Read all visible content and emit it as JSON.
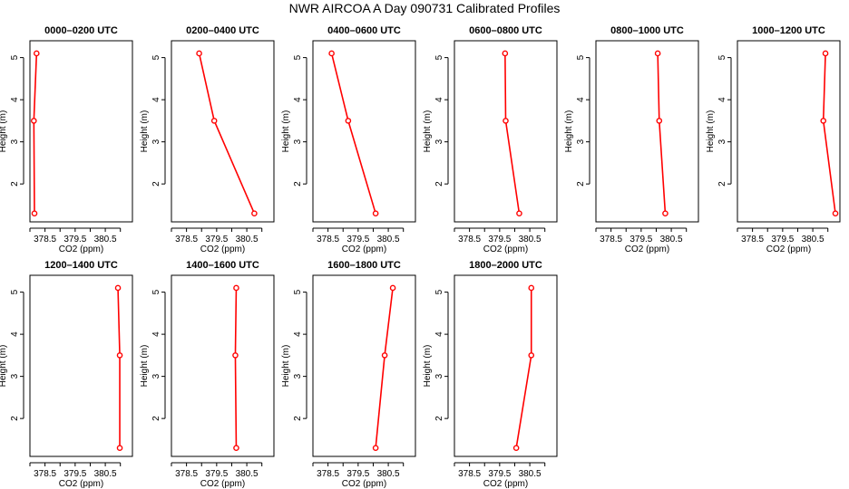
{
  "title": "NWR AIRCOA A  Day 090731  Calibrated Profiles",
  "colors": {
    "line": "#ff0000",
    "point": "#ff0000",
    "axis": "#000000"
  },
  "chart_data": [
    {
      "type": "line",
      "title": "0000–0200 UTC",
      "xlabel": "CO2 (ppm)",
      "ylabel": "Height (m)",
      "xlim": [
        378.0,
        381.4
      ],
      "ylim": [
        1.1,
        5.4
      ],
      "xticks": [
        378.5,
        379.5,
        380.5
      ],
      "xtick_labels": [
        "378.5",
        "379.5",
        "380.5"
      ],
      "yticks": [
        2,
        3,
        4,
        5
      ],
      "ytick_labels": [
        "2",
        "3",
        "4",
        "5"
      ],
      "x": [
        378.15,
        378.13,
        378.22
      ],
      "y": [
        1.3,
        3.5,
        5.1
      ]
    },
    {
      "type": "line",
      "title": "0200–0400 UTC",
      "xlabel": "CO2 (ppm)",
      "ylabel": "Height (m)",
      "xlim": [
        378.0,
        381.4
      ],
      "ylim": [
        1.1,
        5.4
      ],
      "xticks": [
        378.5,
        379.5,
        380.5
      ],
      "xtick_labels": [
        "378.5",
        "379.5",
        "380.5"
      ],
      "yticks": [
        2,
        3,
        4,
        5
      ],
      "ytick_labels": [
        "2",
        "3",
        "4",
        "5"
      ],
      "x": [
        380.75,
        379.42,
        378.92
      ],
      "y": [
        1.3,
        3.5,
        5.1
      ]
    },
    {
      "type": "line",
      "title": "0400–0600 UTC",
      "xlabel": "CO2 (ppm)",
      "ylabel": "Height (m)",
      "xlim": [
        378.0,
        381.4
      ],
      "ylim": [
        1.1,
        5.4
      ],
      "xticks": [
        378.5,
        379.5,
        380.5
      ],
      "xtick_labels": [
        "378.5",
        "379.5",
        "380.5"
      ],
      "yticks": [
        2,
        3,
        4,
        5
      ],
      "ytick_labels": [
        "2",
        "3",
        "4",
        "5"
      ],
      "x": [
        380.08,
        379.17,
        378.62
      ],
      "y": [
        1.3,
        3.5,
        5.1
      ]
    },
    {
      "type": "line",
      "title": "0600–0800 UTC",
      "xlabel": "CO2 (ppm)",
      "ylabel": "Height (m)",
      "xlim": [
        378.0,
        381.4
      ],
      "ylim": [
        1.1,
        5.4
      ],
      "xticks": [
        378.5,
        379.5,
        380.5
      ],
      "xtick_labels": [
        "378.5",
        "379.5",
        "380.5"
      ],
      "yticks": [
        2,
        3,
        4,
        5
      ],
      "ytick_labels": [
        "2",
        "3",
        "4",
        "5"
      ],
      "x": [
        380.15,
        379.7,
        379.68
      ],
      "y": [
        1.3,
        3.5,
        5.1
      ]
    },
    {
      "type": "line",
      "title": "0800–1000 UTC",
      "xlabel": "CO2 (ppm)",
      "ylabel": "Height (m)",
      "xlim": [
        378.0,
        381.4
      ],
      "ylim": [
        1.1,
        5.4
      ],
      "xticks": [
        378.5,
        379.5,
        380.5
      ],
      "xtick_labels": [
        "378.5",
        "379.5",
        "380.5"
      ],
      "yticks": [
        2,
        3,
        4,
        5
      ],
      "ytick_labels": [
        "2",
        "3",
        "4",
        "5"
      ],
      "x": [
        380.3,
        380.1,
        380.05
      ],
      "y": [
        1.3,
        3.5,
        5.1
      ]
    },
    {
      "type": "line",
      "title": "1000–1200 UTC",
      "xlabel": "CO2 (ppm)",
      "ylabel": "Height (m)",
      "xlim": [
        378.0,
        381.4
      ],
      "ylim": [
        1.1,
        5.4
      ],
      "xticks": [
        378.5,
        379.5,
        380.5
      ],
      "xtick_labels": [
        "378.5",
        "379.5",
        "380.5"
      ],
      "yticks": [
        2,
        3,
        4,
        5
      ],
      "ytick_labels": [
        "2",
        "3",
        "4",
        "5"
      ],
      "x": [
        381.25,
        380.85,
        380.92
      ],
      "y": [
        1.3,
        3.5,
        5.1
      ]
    },
    {
      "type": "line",
      "title": "1200–1400 UTC",
      "xlabel": "CO2 (ppm)",
      "ylabel": "Height (m)",
      "xlim": [
        378.0,
        381.4
      ],
      "ylim": [
        1.1,
        5.4
      ],
      "xticks": [
        378.5,
        379.5,
        380.5
      ],
      "xtick_labels": [
        "378.5",
        "379.5",
        "380.5"
      ],
      "yticks": [
        2,
        3,
        4,
        5
      ],
      "ytick_labels": [
        "2",
        "3",
        "4",
        "5"
      ],
      "x": [
        380.98,
        380.98,
        380.92
      ],
      "y": [
        1.3,
        3.5,
        5.1
      ]
    },
    {
      "type": "line",
      "title": "1400–1600 UTC",
      "xlabel": "CO2 (ppm)",
      "ylabel": "Height (m)",
      "xlim": [
        378.0,
        381.4
      ],
      "ylim": [
        1.1,
        5.4
      ],
      "xticks": [
        378.5,
        379.5,
        380.5
      ],
      "xtick_labels": [
        "378.5",
        "379.5",
        "380.5"
      ],
      "yticks": [
        2,
        3,
        4,
        5
      ],
      "ytick_labels": [
        "2",
        "3",
        "4",
        "5"
      ],
      "x": [
        380.15,
        380.12,
        380.15
      ],
      "y": [
        1.3,
        3.5,
        5.1
      ]
    },
    {
      "type": "line",
      "title": "1600–1800 UTC",
      "xlabel": "CO2 (ppm)",
      "ylabel": "Height (m)",
      "xlim": [
        378.0,
        381.4
      ],
      "ylim": [
        1.1,
        5.4
      ],
      "xticks": [
        378.5,
        379.5,
        380.5
      ],
      "xtick_labels": [
        "378.5",
        "379.5",
        "380.5"
      ],
      "yticks": [
        2,
        3,
        4,
        5
      ],
      "ytick_labels": [
        "2",
        "3",
        "4",
        "5"
      ],
      "x": [
        380.08,
        380.38,
        380.65
      ],
      "y": [
        1.3,
        3.5,
        5.1
      ]
    },
    {
      "type": "line",
      "title": "1800–2000 UTC",
      "xlabel": "CO2 (ppm)",
      "ylabel": "Height (m)",
      "xlim": [
        378.0,
        381.4
      ],
      "ylim": [
        1.1,
        5.4
      ],
      "xticks": [
        378.5,
        379.5,
        380.5
      ],
      "xtick_labels": [
        "378.5",
        "379.5",
        "380.5"
      ],
      "yticks": [
        2,
        3,
        4,
        5
      ],
      "ytick_labels": [
        "2",
        "3",
        "4",
        "5"
      ],
      "x": [
        380.05,
        380.55,
        380.55
      ],
      "y": [
        1.3,
        3.5,
        5.1
      ]
    }
  ]
}
